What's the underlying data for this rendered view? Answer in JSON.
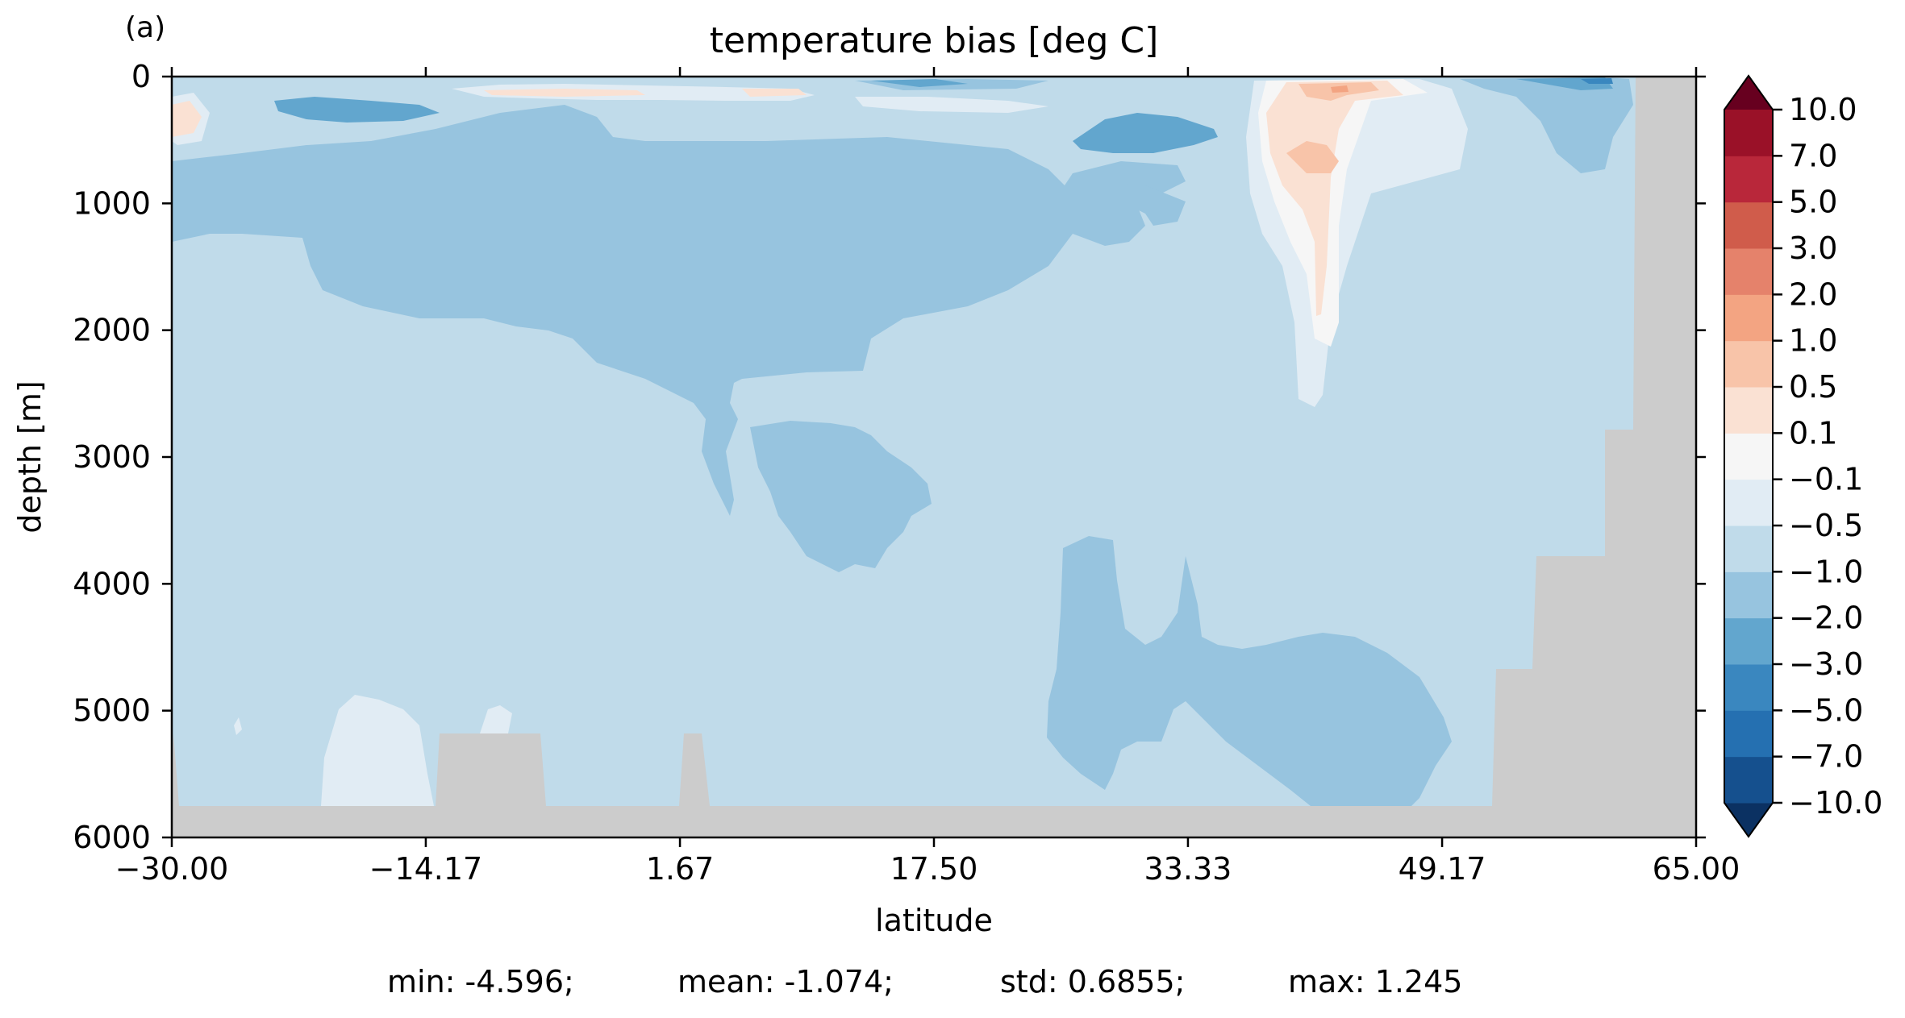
{
  "chart_data": {
    "type": "heatmap",
    "panel_label": "(a)",
    "title": "temperature bias [deg C]",
    "xlabel": "latitude",
    "ylabel": "depth [m]",
    "xlim": [
      -30.0,
      65.0
    ],
    "ylim": [
      6000,
      0
    ],
    "xticks": [
      "−30.00",
      "−14.17",
      "1.67",
      "17.50",
      "33.33",
      "49.17",
      "65.00"
    ],
    "xtick_values": [
      -30.0,
      -14.17,
      1.67,
      17.5,
      33.33,
      49.17,
      65.0
    ],
    "yticks": [
      "0",
      "1000",
      "2000",
      "3000",
      "4000",
      "5000",
      "6000"
    ],
    "ytick_values": [
      0,
      1000,
      2000,
      3000,
      4000,
      5000,
      6000
    ],
    "colorbar": {
      "levels": [
        "−10.0",
        "−7.0",
        "−5.0",
        "−3.0",
        "−2.0",
        "−1.0",
        "−0.5",
        "−0.1",
        "0.1",
        "0.5",
        "1.0",
        "2.0",
        "3.0",
        "5.0",
        "7.0",
        "10.0"
      ],
      "colors": [
        "#0b3162",
        "#15508e",
        "#2570b1",
        "#3a87bf",
        "#62a6ce",
        "#97c4df",
        "#c0dbea",
        "#e1ecf4",
        "#f6f6f6",
        "#fae1d3",
        "#f8c4a9",
        "#f3a482",
        "#e5826b",
        "#d05c4b",
        "#b9273a",
        "#9a1128",
        "#67001f"
      ],
      "extend": "both"
    },
    "dominant_value_range": "-1.0 to -0.5",
    "land_mask_color": "#cccccc",
    "stats": {
      "min": "min: -4.596;",
      "mean": "mean: -1.074;",
      "std": "std: 0.6855;",
      "max": "max: 1.245"
    }
  }
}
